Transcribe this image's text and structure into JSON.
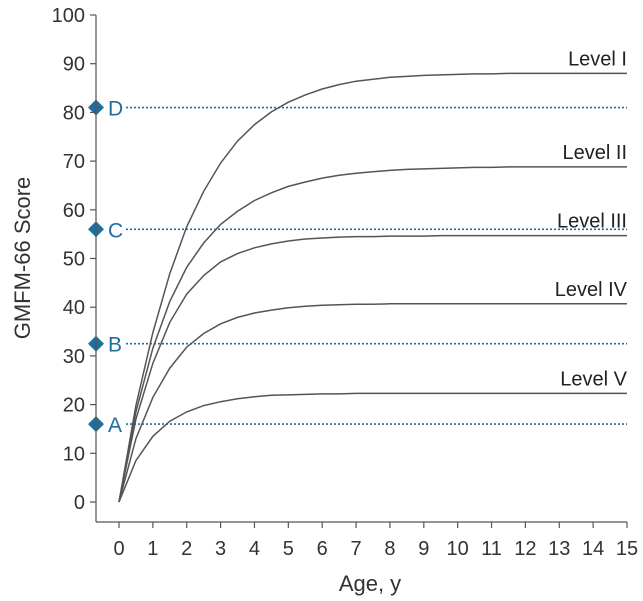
{
  "chart_data": {
    "type": "line",
    "title": "",
    "xlabel": "Age, y",
    "ylabel": "GMFM-66 Score",
    "xlim": [
      0,
      15
    ],
    "ylim": [
      0,
      100
    ],
    "x_ticks": [
      0,
      1,
      2,
      3,
      4,
      5,
      6,
      7,
      8,
      9,
      10,
      11,
      12,
      13,
      14,
      15
    ],
    "y_ticks": [
      0,
      10,
      20,
      30,
      40,
      50,
      60,
      70,
      80,
      90,
      100
    ],
    "grid": false,
    "x": [
      0,
      0.5,
      1,
      1.5,
      2,
      2.5,
      3,
      3.5,
      4,
      4.5,
      5,
      5.5,
      6,
      6.5,
      7,
      7.5,
      8,
      8.5,
      9,
      9.5,
      10,
      10.5,
      11,
      11.5,
      12,
      12.5,
      13,
      13.5,
      14,
      14.5,
      15
    ],
    "series": [
      {
        "name": "Level I",
        "color": "#555555",
        "values": [
          0,
          19.8,
          34.8,
          46.9,
          56.5,
          63.8,
          69.6,
          74.1,
          77.5,
          80.1,
          82.1,
          83.6,
          84.8,
          85.7,
          86.4,
          86.8,
          87.2,
          87.4,
          87.6,
          87.7,
          87.8,
          87.9,
          87.9,
          88.0,
          88.0,
          88.0,
          88.0,
          88.0,
          88.0,
          88.0,
          88.0
        ]
      },
      {
        "name": "Level II",
        "color": "#555555",
        "values": [
          0,
          18.5,
          31.6,
          41.2,
          48.2,
          53.2,
          57.0,
          59.7,
          61.9,
          63.5,
          64.8,
          65.7,
          66.5,
          67.1,
          67.5,
          67.8,
          68.1,
          68.3,
          68.4,
          68.5,
          68.6,
          68.7,
          68.7,
          68.8,
          68.8,
          68.8,
          68.8,
          68.8,
          68.8,
          68.8,
          68.8
        ]
      },
      {
        "name": "Level III",
        "color": "#555555",
        "values": [
          0,
          17.0,
          28.5,
          36.9,
          42.7,
          46.5,
          49.3,
          51.0,
          52.2,
          53.0,
          53.6,
          54.0,
          54.2,
          54.4,
          54.5,
          54.5,
          54.6,
          54.6,
          54.6,
          54.7,
          54.7,
          54.7,
          54.7,
          54.7,
          54.7,
          54.7,
          54.7,
          54.7,
          54.7,
          54.7,
          54.7
        ]
      },
      {
        "name": "Level IV",
        "color": "#555555",
        "values": [
          0,
          13.0,
          21.5,
          27.5,
          31.8,
          34.6,
          36.6,
          37.9,
          38.8,
          39.4,
          39.9,
          40.2,
          40.4,
          40.5,
          40.6,
          40.6,
          40.7,
          40.7,
          40.7,
          40.7,
          40.7,
          40.7,
          40.7,
          40.7,
          40.7,
          40.7,
          40.7,
          40.7,
          40.7,
          40.7,
          40.7
        ]
      },
      {
        "name": "Level V",
        "color": "#555555",
        "values": [
          0,
          8.5,
          13.5,
          16.6,
          18.5,
          19.8,
          20.6,
          21.2,
          21.6,
          21.9,
          22.0,
          22.1,
          22.2,
          22.2,
          22.3,
          22.3,
          22.3,
          22.3,
          22.3,
          22.3,
          22.3,
          22.3,
          22.3,
          22.3,
          22.3,
          22.3,
          22.3,
          22.3,
          22.3,
          22.3,
          22.3
        ]
      }
    ],
    "reference_lines": [
      {
        "label": "A",
        "y": 16,
        "color": "#1f6f9e"
      },
      {
        "label": "B",
        "y": 32.5,
        "color": "#1f6f9e"
      },
      {
        "label": "C",
        "y": 56,
        "color": "#1f6f9e"
      },
      {
        "label": "D",
        "y": 81,
        "color": "#1f6f9e"
      }
    ],
    "axis_color": "#555555",
    "text_color": "#333333"
  }
}
